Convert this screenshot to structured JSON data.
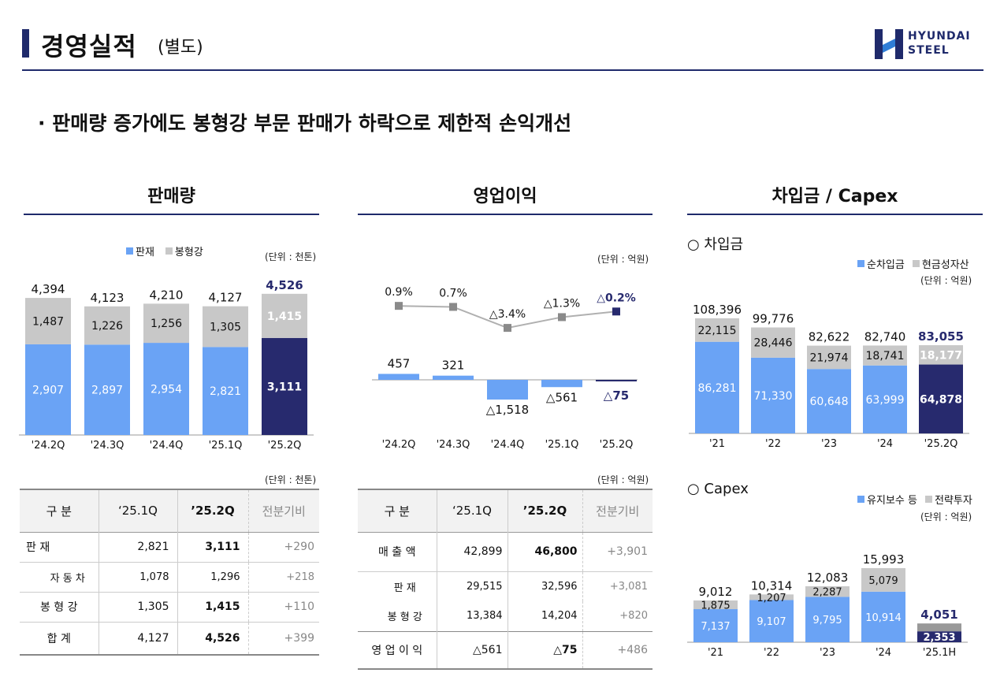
{
  "header": {
    "title": "경영실적",
    "subtitle": "(별도)",
    "logo_line1": "HYUNDAI",
    "logo_line2": "STEEL"
  },
  "headline": "· 판매량 증가에도 봉형강 부문 판매가 하락으로 제한적 손익개선",
  "colors": {
    "blue": "#6aa3f5",
    "gray": "#c8c8c8",
    "navy": "#272a6e",
    "accent": "#1f2a6b"
  },
  "sales": {
    "title": "판매량",
    "legend": [
      "판재",
      "봉형강"
    ],
    "unit": "(단위 : 천톤)",
    "table_unit": "(단위 : 천톤)",
    "table": {
      "headers": [
        "구 분",
        "‘25.1Q",
        "’25.2Q",
        "전분기비"
      ],
      "rows": [
        {
          "label": "판 재",
          "q1": "2,821",
          "q2": "3,111",
          "diff": "+290"
        },
        {
          "label": "자 동 차",
          "q1": "1,078",
          "q2": "1,296",
          "diff": "+218"
        },
        {
          "label": "봉 형 강",
          "q1": "1,305",
          "q2": "1,415",
          "diff": "+110"
        },
        {
          "label": "합 계",
          "q1": "4,127",
          "q2": "4,526",
          "diff": "+399"
        }
      ]
    }
  },
  "profit": {
    "title": "영업이익",
    "unit": "(단위 : 억원)",
    "table_unit": "(단위 : 억원)",
    "table": {
      "headers": [
        "구 분",
        "‘25.1Q",
        "’25.2Q",
        "전분기비"
      ],
      "rows": [
        {
          "label": "매 출 액",
          "q1": "42,899",
          "q2": "46,800",
          "diff": "+3,901"
        },
        {
          "label": "판 재",
          "q1": "29,515",
          "q2": "32,596",
          "diff": "+3,081"
        },
        {
          "label": "봉 형 강",
          "q1": "13,384",
          "q2": "14,204",
          "diff": "+820"
        },
        {
          "label": "영 업 이 익",
          "q1": "△561",
          "q2": "△75",
          "diff": "+486"
        }
      ]
    }
  },
  "debt": {
    "title": "차입금 / Capex",
    "borrow_heading": "○ 차입금",
    "borrow_legend": [
      "순차입금",
      "현금성자산"
    ],
    "borrow_unit": "(단위 : 억원)",
    "capex_heading": "○ Capex",
    "capex_legend": [
      "유지보수 등",
      "전략투자"
    ],
    "capex_unit": "(단위 : 억원)"
  },
  "chart_data": [
    {
      "type": "bar",
      "title": "판매량",
      "stacked": true,
      "categories": [
        "'24.2Q",
        "'24.3Q",
        "'24.4Q",
        "'25.1Q",
        "'25.2Q"
      ],
      "series": [
        {
          "name": "판재",
          "values": [
            2907,
            2897,
            2954,
            2821,
            3111
          ],
          "labels": [
            "2,907",
            "2,897",
            "2,954",
            "2,821",
            "3,111"
          ]
        },
        {
          "name": "봉형강",
          "values": [
            1487,
            1226,
            1256,
            1305,
            1415
          ],
          "labels": [
            "1,487",
            "1,226",
            "1,256",
            "1,305",
            "1,415"
          ]
        }
      ],
      "totals": [
        "4,394",
        "4,123",
        "4,210",
        "4,127",
        "4,526"
      ],
      "ylim": [
        0,
        4800
      ]
    },
    {
      "type": "bar",
      "title": "영업이익",
      "categories": [
        "'24.2Q",
        "'24.3Q",
        "'24.4Q",
        "'25.1Q",
        "'25.2Q"
      ],
      "values": [
        457,
        321,
        -1518,
        -561,
        -75
      ],
      "labels": [
        "457",
        "321",
        "△1,518",
        "△561",
        "△75"
      ],
      "margin_line": {
        "name": "영업이익률",
        "values": [
          0.9,
          0.7,
          -3.4,
          -1.3,
          -0.2
        ],
        "labels": [
          "0.9%",
          "0.7%",
          "△3.4%",
          "△1.3%",
          "△0.2%"
        ]
      }
    },
    {
      "type": "bar",
      "title": "차입금",
      "stacked": true,
      "categories": [
        "'21",
        "'22",
        "'23",
        "'24",
        "'25.2Q"
      ],
      "series": [
        {
          "name": "순차입금",
          "values": [
            86281,
            71330,
            60648,
            63999,
            64878
          ],
          "labels": [
            "86,281",
            "71,330",
            "60,648",
            "63,999",
            "64,878"
          ]
        },
        {
          "name": "현금성자산",
          "values": [
            22115,
            28446,
            21974,
            18741,
            18177
          ],
          "labels": [
            "22,115",
            "28,446",
            "21,974",
            "18,741",
            "18,177"
          ]
        }
      ],
      "totals": [
        "108,396",
        "99,776",
        "82,622",
        "82,740",
        "83,055"
      ],
      "ylim": [
        0,
        115000
      ]
    },
    {
      "type": "bar",
      "title": "Capex",
      "stacked": true,
      "categories": [
        "'21",
        "'22",
        "'23",
        "'24",
        "'25.1H"
      ],
      "series": [
        {
          "name": "유지보수 등",
          "values": [
            7137,
            9107,
            9795,
            10914,
            2353
          ],
          "labels": [
            "7,137",
            "9,107",
            "9,795",
            "10,914",
            "2,353"
          ]
        },
        {
          "name": "전략투자",
          "values": [
            1875,
            1207,
            2287,
            5079,
            1698
          ],
          "labels": [
            "1,875",
            "1,207",
            "2,287",
            "5,079",
            ""
          ]
        }
      ],
      "totals": [
        "9,012",
        "10,314",
        "12,083",
        "15,993",
        "4,051"
      ],
      "ylim": [
        0,
        17000
      ]
    }
  ]
}
